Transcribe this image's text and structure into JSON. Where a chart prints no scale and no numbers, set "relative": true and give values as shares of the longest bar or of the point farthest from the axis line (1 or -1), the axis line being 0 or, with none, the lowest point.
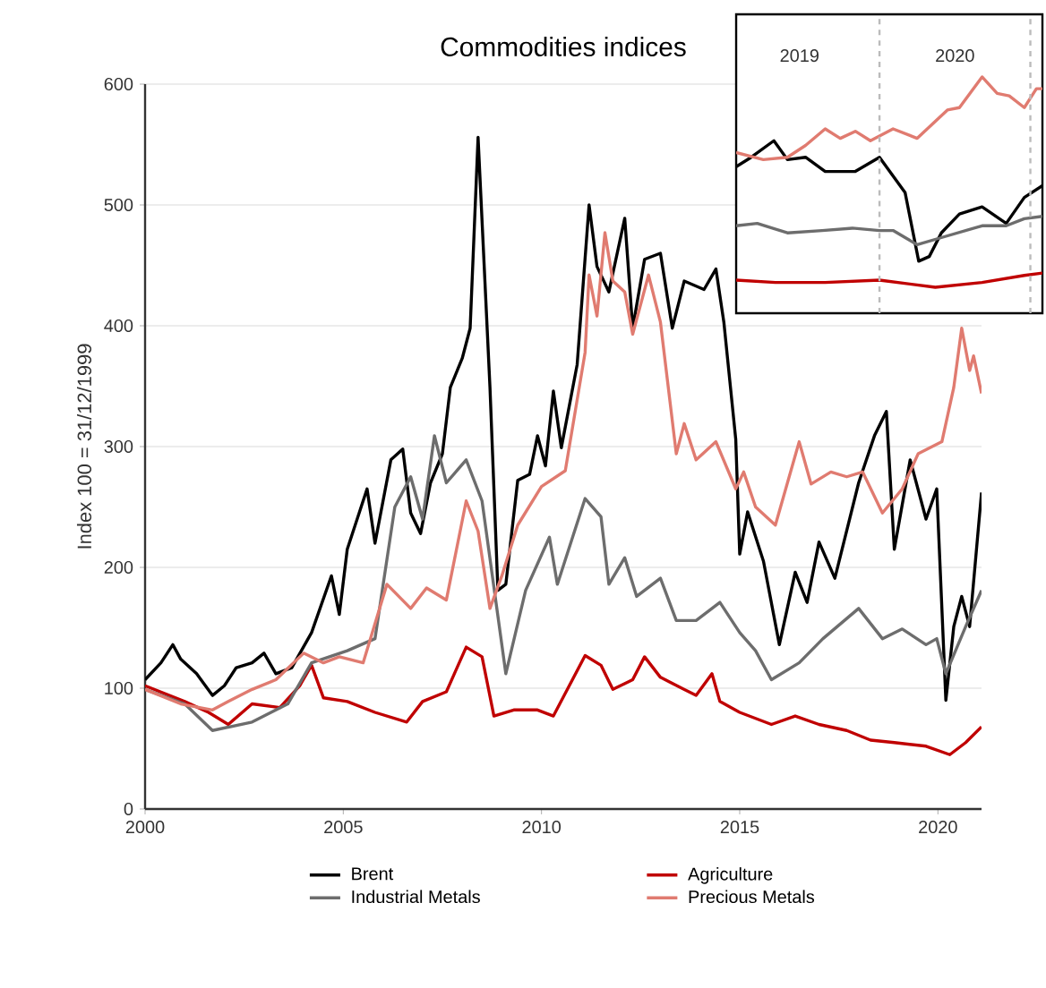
{
  "chart_data": [
    {
      "type": "line",
      "title": "Commodities indices",
      "ylabel": "Index 100 = 31/12/1999",
      "xlim": [
        2000,
        2021.1
      ],
      "xticks": [
        2000,
        2005,
        2010,
        2015,
        2020
      ],
      "ylim": [
        0,
        600
      ],
      "yticks": [
        0,
        100,
        200,
        300,
        400,
        500,
        600
      ],
      "grid": "y",
      "legend": "bottom",
      "series": [
        {
          "name": "Brent",
          "color": "#000000",
          "x": [
            2000.0,
            2000.4,
            2000.7,
            2000.9,
            2001.3,
            2001.7,
            2002.0,
            2002.3,
            2002.7,
            2003.0,
            2003.3,
            2003.7,
            2004.2,
            2004.7,
            2004.9,
            2005.1,
            2005.6,
            2005.8,
            2006.2,
            2006.5,
            2006.7,
            2006.95,
            2007.2,
            2007.5,
            2007.7,
            2008.0,
            2008.2,
            2008.4,
            2008.7,
            2008.9,
            2009.1,
            2009.4,
            2009.7,
            2009.9,
            2010.1,
            2010.3,
            2010.5,
            2010.9,
            2011.2,
            2011.4,
            2011.7,
            2012.1,
            2012.3,
            2012.6,
            2013.0,
            2013.3,
            2013.6,
            2014.1,
            2014.4,
            2014.6,
            2014.9,
            2015.0,
            2015.2,
            2015.6,
            2016.0,
            2016.4,
            2016.7,
            2017.0,
            2017.4,
            2018.0,
            2018.4,
            2018.7,
            2018.9,
            2019.3,
            2019.7,
            2019.97,
            2020.2,
            2020.4,
            2020.6,
            2020.8,
            2021.1
          ],
          "values": [
            107,
            121,
            136,
            124,
            112,
            94,
            102,
            117,
            121,
            129,
            112,
            117,
            146,
            193,
            161,
            215,
            265,
            220,
            289,
            298,
            245,
            228,
            270,
            294,
            349,
            373,
            398,
            556,
            349,
            181,
            186,
            272,
            277,
            309,
            284,
            346,
            299,
            368,
            500,
            449,
            428,
            489,
            398,
            455,
            460,
            398,
            437,
            430,
            447,
            403,
            306,
            211,
            246,
            205,
            136,
            196,
            171,
            221,
            191,
            270,
            309,
            329,
            215,
            289,
            240,
            265,
            90,
            151,
            176,
            151,
            262
          ]
        },
        {
          "name": "Agriculture",
          "color": "#c00000",
          "x": [
            2000.0,
            2001.0,
            2001.6,
            2002.1,
            2002.7,
            2003.4,
            2003.9,
            2004.2,
            2004.5,
            2005.1,
            2005.8,
            2006.6,
            2007.0,
            2007.6,
            2008.1,
            2008.5,
            2008.8,
            2009.3,
            2009.9,
            2010.3,
            2010.7,
            2011.1,
            2011.5,
            2011.8,
            2012.3,
            2012.6,
            2013.0,
            2013.9,
            2014.3,
            2014.5,
            2015.0,
            2015.8,
            2016.4,
            2017.0,
            2017.7,
            2018.3,
            2018.9,
            2019.7,
            2020.3,
            2020.7,
            2021.1
          ],
          "values": [
            102,
            89,
            80,
            70,
            87,
            84,
            102,
            119,
            92,
            89,
            80,
            72,
            89,
            97,
            134,
            126,
            77,
            82,
            82,
            77,
            102,
            127,
            119,
            99,
            107,
            126,
            109,
            94,
            112,
            89,
            80,
            70,
            77,
            70,
            65,
            57,
            55,
            52,
            45,
            55,
            68
          ]
        },
        {
          "name": "Industrial Metals",
          "color": "#6d6d6d",
          "x": [
            2000.0,
            2001.0,
            2001.7,
            2002.7,
            2003.6,
            2004.2,
            2005.1,
            2005.8,
            2006.3,
            2006.7,
            2007.0,
            2007.3,
            2007.6,
            2008.1,
            2008.5,
            2009.1,
            2009.6,
            2010.2,
            2010.4,
            2011.1,
            2011.5,
            2011.7,
            2012.1,
            2012.4,
            2013.0,
            2013.4,
            2013.9,
            2014.5,
            2015.0,
            2015.4,
            2015.8,
            2016.5,
            2017.1,
            2018.0,
            2018.6,
            2019.1,
            2019.7,
            2019.97,
            2020.2,
            2020.7,
            2021.1
          ],
          "values": [
            99,
            87,
            65,
            72,
            87,
            121,
            131,
            141,
            250,
            275,
            240,
            309,
            270,
            289,
            255,
            112,
            181,
            225,
            186,
            257,
            242,
            186,
            208,
            176,
            191,
            156,
            156,
            171,
            146,
            131,
            107,
            121,
            141,
            166,
            141,
            149,
            136,
            141,
            112,
            151,
            181
          ]
        },
        {
          "name": "Precious Metals",
          "color": "#e07b70",
          "x": [
            2000.0,
            2000.9,
            2001.7,
            2002.1,
            2002.7,
            2003.3,
            2004.0,
            2004.5,
            2004.9,
            2005.5,
            2006.1,
            2006.7,
            2007.1,
            2007.6,
            2008.1,
            2008.4,
            2008.7,
            2009.0,
            2009.4,
            2010.0,
            2010.6,
            2011.1,
            2011.2,
            2011.4,
            2011.6,
            2011.8,
            2012.1,
            2012.3,
            2012.7,
            2013.0,
            2013.4,
            2013.6,
            2013.9,
            2014.4,
            2014.9,
            2015.1,
            2015.4,
            2015.9,
            2016.5,
            2016.8,
            2017.3,
            2017.7,
            2018.1,
            2018.6,
            2019.1,
            2019.5,
            2020.1,
            2020.4,
            2020.6,
            2020.8,
            2020.9,
            2021.1
          ],
          "values": [
            99,
            87,
            82,
            89,
            99,
            107,
            129,
            121,
            126,
            121,
            186,
            166,
            183,
            173,
            255,
            230,
            166,
            193,
            235,
            267,
            280,
            378,
            442,
            408,
            477,
            437,
            428,
            393,
            442,
            403,
            294,
            319,
            289,
            304,
            265,
            279,
            250,
            235,
            304,
            269,
            279,
            275,
            279,
            245,
            265,
            294,
            304,
            349,
            398,
            363,
            375,
            344
          ]
        }
      ]
    },
    {
      "type": "line",
      "relative": true,
      "xlim": [
        2019.05,
        2021.08
      ],
      "xticks": [
        {
          "value": 2019.47,
          "label": "2019"
        },
        {
          "value": 2020.5,
          "label": "2020"
        }
      ],
      "tick_labels": "x",
      "ref_lines": [
        {
          "axis": "x",
          "value": 2020.0,
          "color": "#bbbbbb",
          "line_style": "dashed"
        },
        {
          "axis": "x",
          "value": 2021.0,
          "color": "#bbbbbb",
          "line_style": "dashed"
        }
      ],
      "series": [
        {
          "color": "#000000",
          "x": [
            2019.05,
            2019.15,
            2019.3,
            2019.39,
            2019.51,
            2019.64,
            2019.84,
            2020.0,
            2020.17,
            2020.26,
            2020.33,
            2020.41,
            2020.53,
            2020.68,
            2020.84,
            2020.96,
            2021.08
          ],
          "values": [
            0.62,
            0.66,
            0.73,
            0.65,
            0.66,
            0.6,
            0.6,
            0.66,
            0.51,
            0.22,
            0.24,
            0.34,
            0.42,
            0.45,
            0.38,
            0.49,
            0.54
          ]
        },
        {
          "color": "#c00000",
          "x": [
            2019.05,
            2019.31,
            2019.64,
            2020.0,
            2020.37,
            2020.68,
            2020.96,
            2021.08
          ],
          "values": [
            0.14,
            0.13,
            0.13,
            0.14,
            0.11,
            0.13,
            0.16,
            0.17
          ]
        },
        {
          "color": "#6d6d6d",
          "x": [
            2019.05,
            2019.19,
            2019.39,
            2019.62,
            2019.82,
            2020.0,
            2020.09,
            2020.25,
            2020.41,
            2020.68,
            2020.84,
            2020.96,
            2021.08
          ],
          "values": [
            0.37,
            0.38,
            0.34,
            0.35,
            0.36,
            0.35,
            0.35,
            0.29,
            0.32,
            0.37,
            0.37,
            0.4,
            0.41
          ]
        },
        {
          "color": "#e07b70",
          "x": [
            2019.05,
            2019.23,
            2019.39,
            2019.51,
            2019.64,
            2019.74,
            2019.84,
            2019.94,
            2020.09,
            2020.25,
            2020.45,
            2020.53,
            2020.68,
            2020.78,
            2020.86,
            2020.96,
            2021.04,
            2021.08
          ],
          "values": [
            0.68,
            0.65,
            0.66,
            0.71,
            0.78,
            0.74,
            0.77,
            0.73,
            0.78,
            0.74,
            0.86,
            0.87,
            1.0,
            0.93,
            0.92,
            0.87,
            0.95,
            0.95
          ]
        }
      ]
    }
  ]
}
